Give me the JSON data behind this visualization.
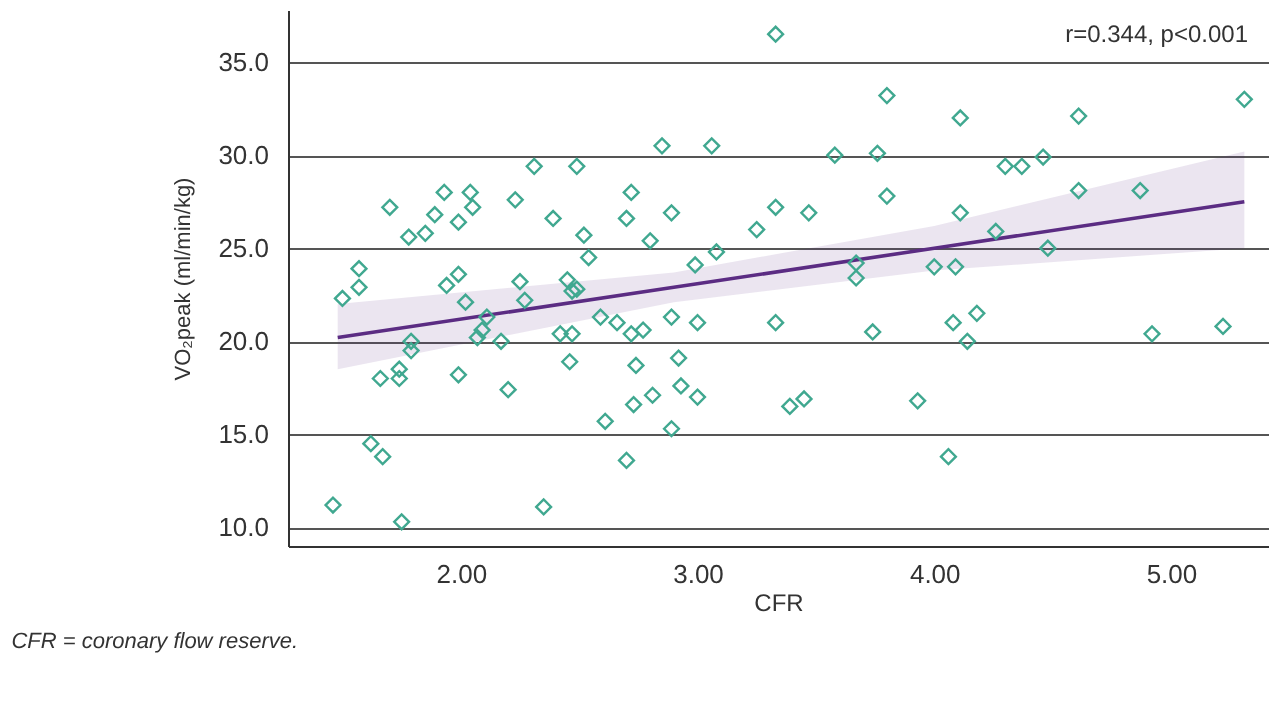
{
  "chart_data": {
    "type": "scatter",
    "xlabel": "CFR",
    "ylabel": "VO₂peak (ml/min/kg)",
    "annotations": [
      "r=0.344, p<0.001",
      "CFR = coronary flow reserve."
    ],
    "xlim": [
      1.27,
      5.41
    ],
    "ylim": [
      9.0,
      37.8
    ],
    "xticks": [
      {
        "value": 2,
        "label": "2.00"
      },
      {
        "value": 3,
        "label": "3.00"
      },
      {
        "value": 4,
        "label": "4.00"
      },
      {
        "value": 5,
        "label": "5.00"
      }
    ],
    "yticks": [
      {
        "value": 10,
        "label": "10.0"
      },
      {
        "value": 15,
        "label": "15.0"
      },
      {
        "value": 20,
        "label": "20.0"
      },
      {
        "value": 25,
        "label": "25.0"
      },
      {
        "value": 30,
        "label": "30.0"
      },
      {
        "value": 35,
        "label": "35.0"
      }
    ],
    "grid": "y",
    "series": [
      {
        "type": "line",
        "color": "#5b2c83",
        "x": [
          1.48,
          2.9,
          4.0,
          5.31
        ],
        "values": [
          20.2,
          22.9,
          25.0,
          27.5
        ],
        "lower": [
          18.5,
          22.1,
          23.8,
          25.0
        ],
        "upper": [
          22.0,
          23.7,
          26.2,
          30.2
        ]
      },
      {
        "color": "#40a890",
        "marker": "diamond",
        "x": [
          1.46,
          1.5,
          1.57,
          1.57,
          1.62,
          1.67,
          1.66,
          1.7,
          1.74,
          1.74,
          1.75,
          1.79,
          1.79,
          1.78,
          1.85,
          1.89,
          1.93,
          1.99,
          2.04,
          2.05,
          1.94,
          1.99,
          2.02,
          2.11,
          2.09,
          2.07,
          2.17,
          1.99,
          2.2,
          2.23,
          2.31,
          2.49,
          2.39,
          2.52,
          2.54,
          2.25,
          2.27,
          2.45,
          2.47,
          2.49,
          2.42,
          2.47,
          2.46,
          2.59,
          2.66,
          2.72,
          2.77,
          2.72,
          2.7,
          2.8,
          2.74,
          2.61,
          2.7,
          2.35,
          2.85,
          3.06,
          2.89,
          2.99,
          3.08,
          3.25,
          3.33,
          3.47,
          3.33,
          3.58,
          3.76,
          3.8,
          3.8,
          4.11,
          3.67,
          3.67,
          4.0,
          4.09,
          4.11,
          4.26,
          4.3,
          4.37,
          4.46,
          4.48,
          4.61,
          4.87,
          4.61,
          5.31,
          4.92,
          5.22,
          4.18,
          4.14,
          2.89,
          3.0,
          3.33,
          3.74,
          4.08,
          2.92,
          2.93,
          3.0,
          2.73,
          2.81,
          2.89,
          3.39,
          3.45,
          3.93,
          4.06
        ],
        "values": [
          11.2,
          22.3,
          22.9,
          23.9,
          14.5,
          13.8,
          18.0,
          27.2,
          18.0,
          18.5,
          10.3,
          19.5,
          20.0,
          25.6,
          25.8,
          26.8,
          28.0,
          26.4,
          28.0,
          27.2,
          23.0,
          23.6,
          22.1,
          21.3,
          20.6,
          20.2,
          20.0,
          18.2,
          17.4,
          27.6,
          29.4,
          29.4,
          26.6,
          25.7,
          24.5,
          23.2,
          22.2,
          23.3,
          22.7,
          22.8,
          20.4,
          20.4,
          18.9,
          21.3,
          21.0,
          20.4,
          20.6,
          28.0,
          26.6,
          25.4,
          18.7,
          15.7,
          13.6,
          11.1,
          30.5,
          30.5,
          26.9,
          24.1,
          24.8,
          26.0,
          27.2,
          26.9,
          36.5,
          30.0,
          30.1,
          33.2,
          27.8,
          32.0,
          24.2,
          23.4,
          24.0,
          24.0,
          26.9,
          25.9,
          29.4,
          29.4,
          29.9,
          25.0,
          28.1,
          28.1,
          32.1,
          33.0,
          20.4,
          20.8,
          21.5,
          20.0,
          21.3,
          21.0,
          21.0,
          20.5,
          21.0,
          19.1,
          17.6,
          17.0,
          16.6,
          17.1,
          15.3,
          16.5,
          16.9,
          16.8,
          13.8
        ]
      }
    ]
  }
}
